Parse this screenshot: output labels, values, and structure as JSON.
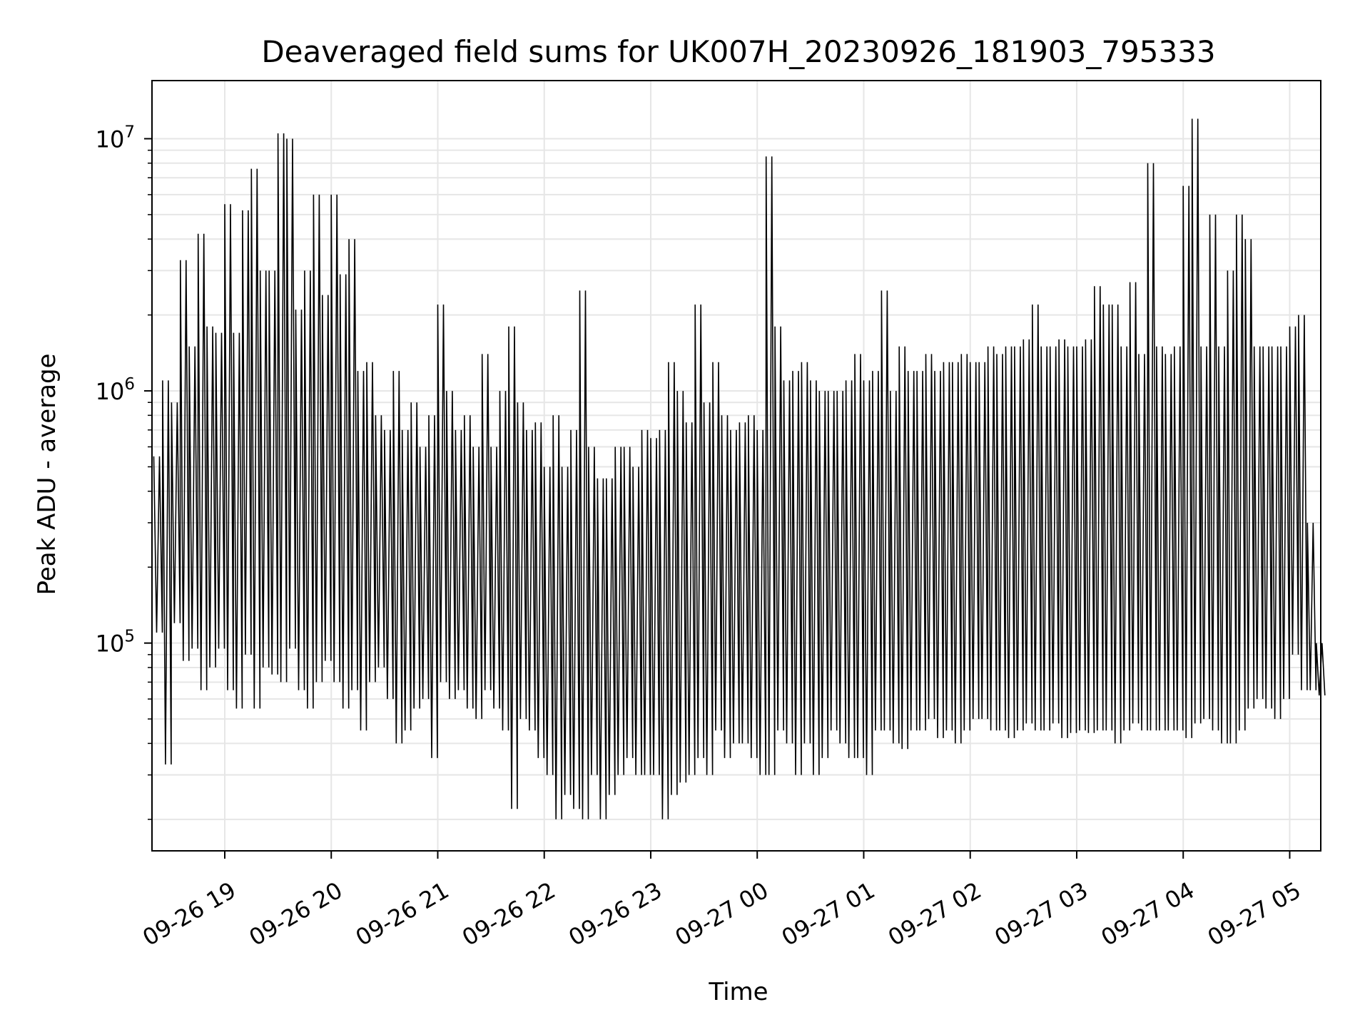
{
  "chart_data": {
    "type": "line",
    "title": "Deaveraged field sums for UK007H_20230926_181903_795333",
    "xlabel": "Time",
    "ylabel": "Peak ADU - average",
    "yscale": "log",
    "ylim": [
      15000,
      17000000
    ],
    "xlim": [
      "2023-09-26T18:19:00",
      "2023-09-27T05:17:30"
    ],
    "grid": true,
    "grid_color": "#e6e6e6",
    "line_color": "#000000",
    "x_ticks": [
      {
        "t": "2023-09-26T19:00:00",
        "label": "09-26 19"
      },
      {
        "t": "2023-09-26T20:00:00",
        "label": "09-26 20"
      },
      {
        "t": "2023-09-26T21:00:00",
        "label": "09-26 21"
      },
      {
        "t": "2023-09-26T22:00:00",
        "label": "09-26 22"
      },
      {
        "t": "2023-09-26T23:00:00",
        "label": "09-26 23"
      },
      {
        "t": "2023-09-27T00:00:00",
        "label": "09-27 00"
      },
      {
        "t": "2023-09-27T01:00:00",
        "label": "09-27 01"
      },
      {
        "t": "2023-09-27T02:00:00",
        "label": "09-27 02"
      },
      {
        "t": "2023-09-27T03:00:00",
        "label": "09-27 03"
      },
      {
        "t": "2023-09-27T04:00:00",
        "label": "09-27 04"
      },
      {
        "t": "2023-09-27T05:00:00",
        "label": "09-27 05"
      }
    ],
    "y_ticks": [
      {
        "value": 100000,
        "base": "10",
        "exp": "5"
      },
      {
        "value": 1000000,
        "base": "10",
        "exp": "6"
      },
      {
        "value": 10000000,
        "base": "10",
        "exp": "7"
      }
    ],
    "series": [
      {
        "x": [
          "2023-09-26T18:20:00",
          "2023-09-26T18:25:00",
          "2023-09-26T18:30:00",
          "2023-09-26T18:35:00",
          "2023-09-26T18:40:00",
          "2023-09-26T18:45:00",
          "2023-09-26T18:50:00",
          "2023-09-26T18:55:00",
          "2023-09-26T19:00:00",
          "2023-09-26T19:05:00",
          "2023-09-26T19:10:00",
          "2023-09-26T19:15:00",
          "2023-09-26T19:20:00",
          "2023-09-26T19:25:00",
          "2023-09-26T19:30:00",
          "2023-09-26T19:35:00",
          "2023-09-26T19:40:00",
          "2023-09-26T19:45:00",
          "2023-09-26T19:50:00",
          "2023-09-26T19:55:00",
          "2023-09-26T20:00:00",
          "2023-09-26T20:05:00",
          "2023-09-26T20:10:00",
          "2023-09-26T20:15:00",
          "2023-09-26T20:20:00",
          "2023-09-26T20:25:00",
          "2023-09-26T20:30:00",
          "2023-09-26T20:35:00",
          "2023-09-26T20:40:00",
          "2023-09-26T20:45:00",
          "2023-09-26T20:50:00",
          "2023-09-26T20:55:00",
          "2023-09-26T21:00:00",
          "2023-09-26T21:05:00",
          "2023-09-26T21:10:00",
          "2023-09-26T21:15:00",
          "2023-09-26T21:20:00",
          "2023-09-26T21:25:00",
          "2023-09-26T21:30:00",
          "2023-09-26T21:35:00",
          "2023-09-26T21:40:00",
          "2023-09-26T21:45:00",
          "2023-09-26T21:50:00",
          "2023-09-26T21:55:00",
          "2023-09-26T22:00:00",
          "2023-09-26T22:05:00",
          "2023-09-26T22:10:00",
          "2023-09-26T22:15:00",
          "2023-09-26T22:20:00",
          "2023-09-26T22:25:00",
          "2023-09-26T22:30:00",
          "2023-09-26T22:35:00",
          "2023-09-26T22:40:00",
          "2023-09-26T22:45:00",
          "2023-09-26T22:50:00",
          "2023-09-26T22:55:00",
          "2023-09-26T23:00:00",
          "2023-09-26T23:05:00",
          "2023-09-26T23:10:00",
          "2023-09-26T23:15:00",
          "2023-09-26T23:20:00",
          "2023-09-26T23:25:00",
          "2023-09-26T23:30:00",
          "2023-09-26T23:35:00",
          "2023-09-26T23:40:00",
          "2023-09-26T23:45:00",
          "2023-09-26T23:50:00",
          "2023-09-26T23:55:00",
          "2023-09-27T00:00:00",
          "2023-09-27T00:05:00",
          "2023-09-27T00:10:00",
          "2023-09-27T00:15:00",
          "2023-09-27T00:20:00",
          "2023-09-27T00:25:00",
          "2023-09-27T00:30:00",
          "2023-09-27T00:35:00",
          "2023-09-27T00:40:00",
          "2023-09-27T00:45:00",
          "2023-09-27T00:50:00",
          "2023-09-27T00:55:00",
          "2023-09-27T01:00:00",
          "2023-09-27T01:05:00",
          "2023-09-27T01:10:00",
          "2023-09-27T01:15:00",
          "2023-09-27T01:20:00",
          "2023-09-27T01:25:00",
          "2023-09-27T01:30:00",
          "2023-09-27T01:35:00",
          "2023-09-27T01:40:00",
          "2023-09-27T01:45:00",
          "2023-09-27T01:50:00",
          "2023-09-27T01:55:00",
          "2023-09-27T02:00:00",
          "2023-09-27T02:05:00",
          "2023-09-27T02:10:00",
          "2023-09-27T02:15:00",
          "2023-09-27T02:20:00",
          "2023-09-27T02:25:00",
          "2023-09-27T02:30:00",
          "2023-09-27T02:35:00",
          "2023-09-27T02:40:00",
          "2023-09-27T02:45:00",
          "2023-09-27T02:50:00",
          "2023-09-27T02:55:00",
          "2023-09-27T03:00:00",
          "2023-09-27T03:05:00",
          "2023-09-27T03:10:00",
          "2023-09-27T03:15:00",
          "2023-09-27T03:20:00",
          "2023-09-27T03:25:00",
          "2023-09-27T03:30:00",
          "2023-09-27T03:35:00",
          "2023-09-27T03:40:00",
          "2023-09-27T03:45:00",
          "2023-09-27T03:50:00",
          "2023-09-27T03:55:00",
          "2023-09-27T04:00:00",
          "2023-09-27T04:05:00",
          "2023-09-27T04:10:00",
          "2023-09-27T04:15:00",
          "2023-09-27T04:20:00",
          "2023-09-27T04:25:00",
          "2023-09-27T04:30:00",
          "2023-09-27T04:35:00",
          "2023-09-27T04:40:00",
          "2023-09-27T04:45:00",
          "2023-09-27T04:50:00",
          "2023-09-27T04:55:00",
          "2023-09-27T05:00:00",
          "2023-09-27T05:05:00",
          "2023-09-27T05:10:00",
          "2023-09-27T05:15:00"
        ],
        "min": [
          110000,
          33000,
          120000,
          85000,
          95000,
          65000,
          80000,
          95000,
          65000,
          55000,
          90000,
          55000,
          80000,
          75000,
          70000,
          95000,
          65000,
          55000,
          70000,
          85000,
          70000,
          55000,
          65000,
          45000,
          70000,
          80000,
          60000,
          40000,
          45000,
          55000,
          60000,
          35000,
          70000,
          60000,
          65000,
          55000,
          50000,
          65000,
          55000,
          45000,
          22000,
          50000,
          45000,
          35000,
          30000,
          20000,
          25000,
          22000,
          20000,
          30000,
          20000,
          25000,
          30000,
          35000,
          30000,
          30000,
          30000,
          20000,
          25000,
          28000,
          30000,
          35000,
          30000,
          45000,
          35000,
          40000,
          40000,
          35000,
          30000,
          30000,
          45000,
          40000,
          30000,
          40000,
          30000,
          35000,
          45000,
          40000,
          35000,
          35000,
          30000,
          45000,
          45000,
          40000,
          38000,
          45000,
          45000,
          50000,
          42000,
          45000,
          40000,
          45000,
          50000,
          50000,
          45000,
          45000,
          42000,
          45000,
          48000,
          45000,
          45000,
          48000,
          42000,
          44000,
          45000,
          44000,
          45000,
          45000,
          40000,
          45000,
          48000,
          45000,
          45000,
          45000,
          45000,
          45000,
          42000,
          48000,
          50000,
          45000,
          40000,
          40000,
          45000,
          55000,
          60000,
          55000,
          50000,
          60000,
          90000,
          65000,
          65000,
          62000
        ],
        "max": [
          550000,
          1100000,
          900000,
          3300000,
          1500000,
          4200000,
          1800000,
          1700000,
          5500000,
          1700000,
          5200000,
          7600000,
          3000000,
          3000000,
          10500000,
          10000000,
          2100000,
          3000000,
          6000000,
          2400000,
          6000000,
          2900000,
          4000000,
          1200000,
          1300000,
          800000,
          700000,
          1200000,
          700000,
          900000,
          600000,
          800000,
          2200000,
          1000000,
          700000,
          800000,
          600000,
          1400000,
          600000,
          1000000,
          1800000,
          900000,
          700000,
          750000,
          500000,
          800000,
          500000,
          700000,
          2500000,
          600000,
          450000,
          450000,
          600000,
          600000,
          500000,
          700000,
          650000,
          700000,
          1300000,
          1000000,
          750000,
          2200000,
          900000,
          1300000,
          800000,
          700000,
          750000,
          800000,
          700000,
          8500000,
          1800000,
          1100000,
          1200000,
          1300000,
          1100000,
          1000000,
          1000000,
          1000000,
          1100000,
          1400000,
          1100000,
          1200000,
          2500000,
          1000000,
          1500000,
          1200000,
          1200000,
          1400000,
          1200000,
          1300000,
          1300000,
          1400000,
          1300000,
          1300000,
          1500000,
          1400000,
          1500000,
          1500000,
          1600000,
          2200000,
          1500000,
          1500000,
          1600000,
          1500000,
          1500000,
          1600000,
          2600000,
          2200000,
          2200000,
          1500000,
          2700000,
          1400000,
          8000000,
          1500000,
          1400000,
          1500000,
          6500000,
          12000000,
          1500000,
          5000000,
          1500000,
          3000000,
          5000000,
          4000000,
          1500000,
          1500000,
          1500000,
          1500000,
          1800000,
          2000000,
          300000,
          100000
        ]
      }
    ]
  }
}
